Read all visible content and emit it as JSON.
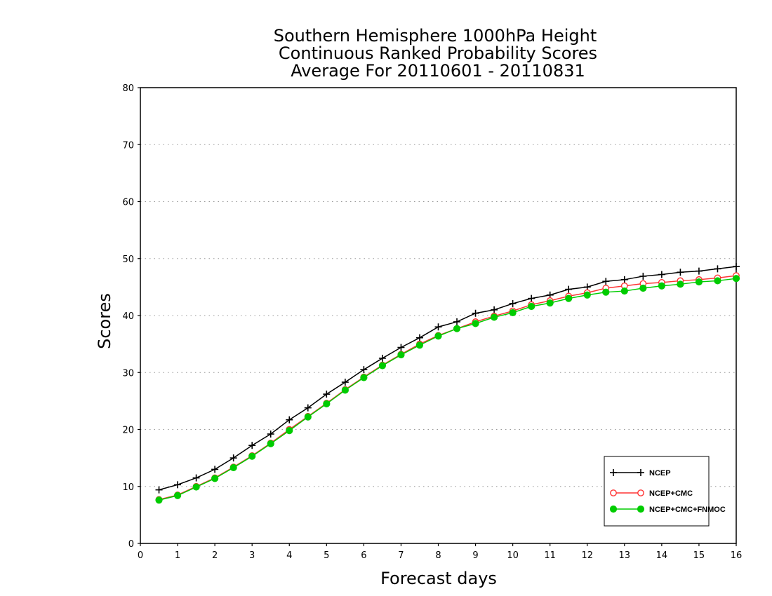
{
  "chart_data": {
    "type": "line",
    "title_lines": [
      "Southern Hemisphere 1000hPa Height",
      "Continuous Ranked Probability Scores",
      "Average For 20110601 - 20110831"
    ],
    "xlabel": "Forecast days",
    "ylabel": "Scores",
    "xlim": [
      0,
      16
    ],
    "ylim": [
      0,
      80
    ],
    "x_ticks": [
      "0",
      "1",
      "2",
      "3",
      "4",
      "5",
      "6",
      "7",
      "8",
      "9",
      "10",
      "11",
      "12",
      "13",
      "14",
      "15",
      "16"
    ],
    "y_ticks": [
      "0",
      "10",
      "20",
      "30",
      "40",
      "50",
      "60",
      "70",
      "80"
    ],
    "grid": "horizontal dotted",
    "legend_position": "bottom-right",
    "x": [
      0.5,
      1,
      1.5,
      2,
      2.5,
      3,
      3.5,
      4,
      4.5,
      5,
      5.5,
      6,
      6.5,
      7,
      7.5,
      8,
      8.5,
      9,
      9.5,
      10,
      10.5,
      11,
      11.5,
      12,
      12.5,
      13,
      13.5,
      14,
      14.5,
      15,
      15.5,
      16
    ],
    "series": [
      {
        "name": "NCEP",
        "color": "#000000",
        "marker": "plus",
        "values": [
          9.4,
          10.3,
          11.5,
          13.0,
          15.0,
          17.2,
          19.2,
          21.7,
          23.8,
          26.2,
          28.3,
          30.5,
          32.5,
          34.4,
          36.1,
          38.0,
          38.9,
          40.4,
          41.0,
          42.1,
          43.0,
          43.6,
          44.6,
          45.0,
          46.0,
          46.3,
          46.9,
          47.2,
          47.6,
          47.8,
          48.2,
          48.6
        ]
      },
      {
        "name": "NCEP+CMC",
        "color": "#ff3333",
        "marker": "open-circle",
        "values": [
          7.7,
          8.5,
          10.0,
          11.5,
          13.4,
          15.4,
          17.6,
          20.0,
          22.3,
          24.6,
          27.0,
          29.2,
          31.3,
          33.2,
          35.0,
          36.5,
          37.7,
          38.9,
          39.9,
          40.8,
          41.9,
          42.6,
          43.4,
          44.0,
          44.8,
          45.2,
          45.6,
          45.8,
          46.1,
          46.3,
          46.6,
          47.0
        ]
      },
      {
        "name": "NCEP+CMC+FNMOC",
        "color": "#00cc00",
        "marker": "filled-circle",
        "values": [
          7.6,
          8.4,
          9.9,
          11.4,
          13.3,
          15.3,
          17.5,
          19.8,
          22.2,
          24.5,
          26.9,
          29.1,
          31.2,
          33.1,
          34.8,
          36.4,
          37.7,
          38.6,
          39.7,
          40.5,
          41.6,
          42.2,
          43.0,
          43.6,
          44.1,
          44.3,
          44.8,
          45.2,
          45.5,
          45.9,
          46.1,
          46.5
        ]
      }
    ]
  }
}
